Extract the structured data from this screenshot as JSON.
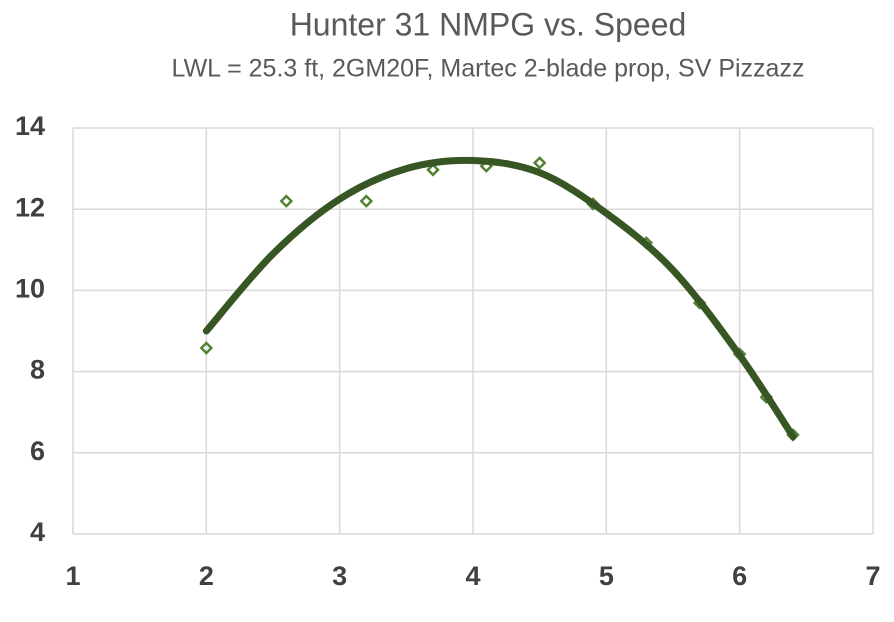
{
  "chart_data": {
    "type": "scatter",
    "title": "Hunter 31 NMPG vs. Speed",
    "subtitle": "LWL = 25.3 ft, 2GM20F, Martec 2-blade prop, SV Pizzazz",
    "xlim": [
      1,
      7
    ],
    "xticks": [
      1,
      2,
      3,
      4,
      5,
      6,
      7
    ],
    "ylim": [
      4,
      14
    ],
    "yticks": [
      4,
      6,
      8,
      10,
      12,
      14
    ],
    "grid": true,
    "series": [
      {
        "type": "scatter",
        "color": "#548235",
        "x": [
          2,
          2.6,
          3.2,
          3.7,
          4.1,
          4.5,
          4.9,
          5.3,
          5.7,
          6.0,
          6.2,
          6.4
        ],
        "values": [
          8.58,
          12.2,
          12.2,
          12.97,
          13.06,
          13.14,
          12.13,
          11.17,
          9.69,
          8.43,
          7.37,
          6.44
        ]
      },
      {
        "type": "line",
        "color": "#375623",
        "x": [
          2,
          2.5,
          3,
          3.5,
          4,
          4.5,
          5,
          5.5,
          6,
          6.4
        ],
        "values": [
          9.0,
          10.9,
          12.25,
          13.0,
          13.2,
          12.9,
          11.9,
          10.5,
          8.4,
          6.4
        ]
      }
    ]
  }
}
